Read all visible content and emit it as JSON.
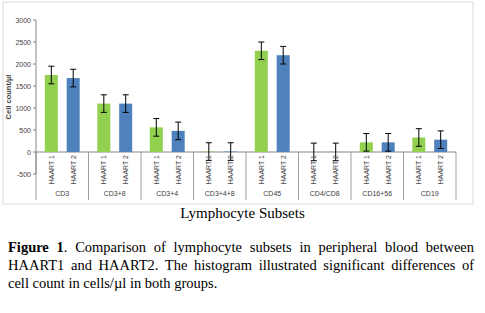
{
  "chart_data": {
    "type": "bar",
    "x_label": "Lymphocyte Subsets",
    "y_label": "Cell count/µl",
    "categories": [
      "CD3",
      "CD3+8",
      "CD3+4",
      "CD3+4+8",
      "CD45",
      "CD4/CD8",
      "CD16+56",
      "CD19"
    ],
    "series": [
      {
        "name": "HAART 1",
        "color": "#92d050",
        "values": [
          1750,
          1100,
          560,
          10,
          2300,
          2,
          220,
          330
        ],
        "errors": [
          200,
          200,
          200,
          200,
          200,
          200,
          200,
          200
        ]
      },
      {
        "name": "HAART 2",
        "color": "#4f81bd",
        "values": [
          1680,
          1100,
          480,
          10,
          2200,
          2,
          220,
          280
        ],
        "errors": [
          200,
          200,
          200,
          200,
          200,
          200,
          200,
          200
        ]
      }
    ],
    "ylim": [
      -500,
      3000
    ],
    "yticks": [
      -500,
      0,
      500,
      1000,
      1500,
      2000,
      2500,
      3000
    ],
    "grid": false
  },
  "caption": {
    "label": "Figure 1",
    "text": ". Comparison of lymphocyte subsets in peripheral blood between HAART1 and HAART2. The histogram illustrated significant differences of cell count in cells/µl in both groups."
  }
}
